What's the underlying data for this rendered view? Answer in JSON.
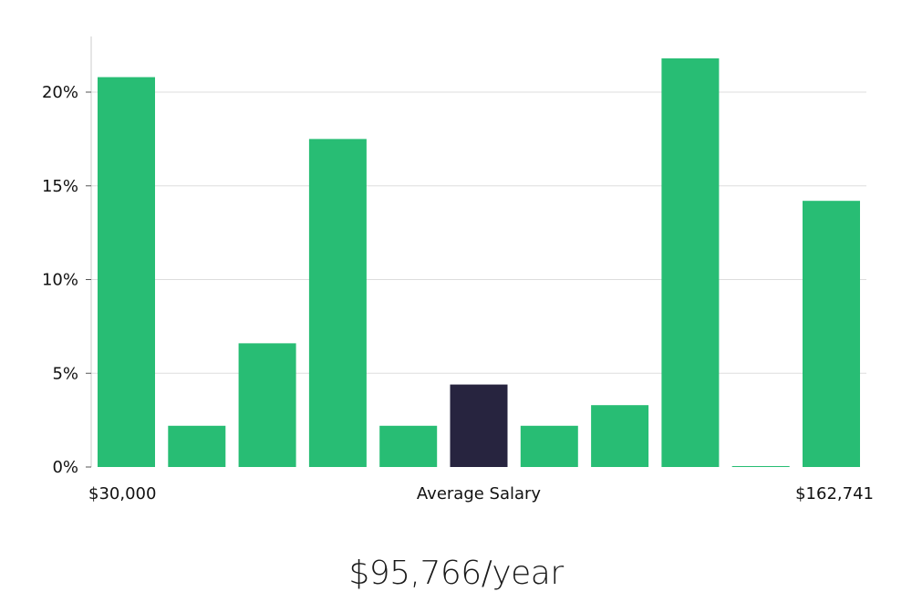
{
  "chart_data": {
    "type": "bar",
    "title": "",
    "xlabel": "Average Salary",
    "ylabel": "",
    "ylim": [
      0,
      23
    ],
    "yticks": [
      0,
      5,
      10,
      15,
      20
    ],
    "ytick_labels": [
      "0%",
      "5%",
      "10%",
      "15%",
      "20%"
    ],
    "x_min_label": "$30,000",
    "x_max_label": "$162,741",
    "values": [
      20.8,
      2.2,
      6.6,
      17.5,
      2.2,
      4.4,
      2.2,
      3.3,
      21.8,
      0.05,
      14.2
    ],
    "highlight_index": 5,
    "colors": {
      "bar": "#28bd74",
      "highlight": "#27243f",
      "grid": "#dddddd",
      "axis": "#cccccc"
    }
  },
  "summary": {
    "average_salary": "$95,766/year"
  }
}
